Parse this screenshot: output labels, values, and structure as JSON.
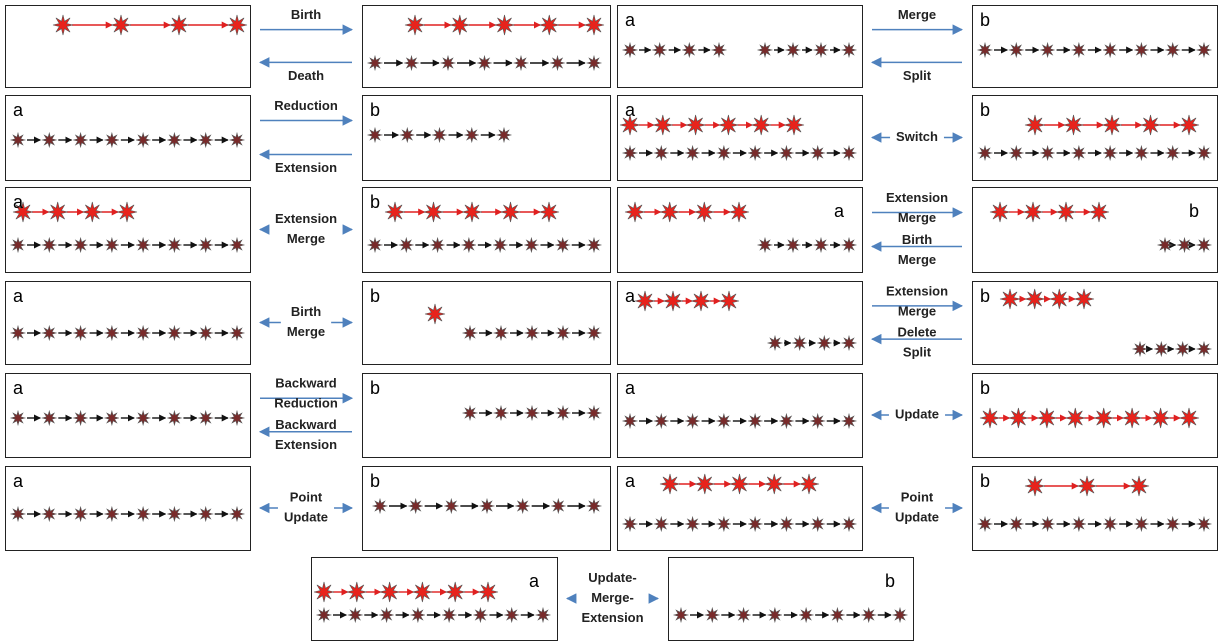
{
  "transitions": [
    {
      "forward": [
        "Birth"
      ],
      "backward": [
        "Death"
      ]
    },
    {
      "a": "a",
      "b": "b",
      "forward": [
        "Merge"
      ],
      "backward": [
        "Split"
      ]
    },
    {
      "a": "a",
      "b": "b",
      "forward": [
        "Reduction"
      ],
      "backward": [
        "Extension"
      ]
    },
    {
      "a": "a",
      "b": "b",
      "bidirectional": [
        "Switch"
      ]
    },
    {
      "a": "a",
      "b": "b",
      "bidirectional": [
        "Extension",
        "Merge"
      ]
    },
    {
      "a": "a",
      "b": "b",
      "forward": [
        "Extension",
        "Merge"
      ],
      "backward": [
        "Birth",
        "Merge"
      ]
    },
    {
      "a": "a",
      "b": "b",
      "bidirectional": [
        "Birth",
        "Merge"
      ]
    },
    {
      "a": "a",
      "b": "b",
      "forward": [
        "Extension",
        "Merge"
      ],
      "backward": [
        "Delete",
        "Split"
      ]
    },
    {
      "a": "a",
      "b": "b",
      "forward": [
        "Backward",
        "Reduction"
      ],
      "backward": [
        "Backward",
        "Extension"
      ]
    },
    {
      "a": "a",
      "b": "b",
      "bidirectional": [
        "Update"
      ]
    },
    {
      "a": "a",
      "b": "b",
      "bidirectional": [
        "Point",
        "Update"
      ]
    },
    {
      "a": "a",
      "b": "b",
      "bidirectional": [
        "Point",
        "Update"
      ]
    },
    {
      "a": "a",
      "b": "b",
      "bidirectional": [
        "Update-",
        "Merge-",
        "Extension"
      ]
    }
  ]
}
